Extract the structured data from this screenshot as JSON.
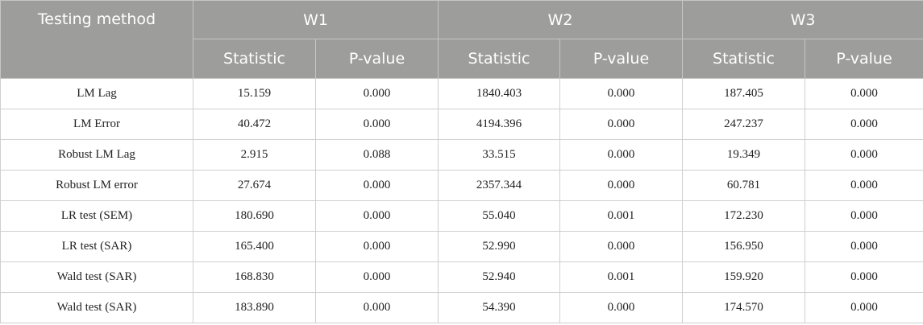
{
  "header": {
    "corner": "Testing method",
    "groups": [
      "W1",
      "W2",
      "W3"
    ],
    "sub": [
      "Statistic",
      "P-value"
    ]
  },
  "rows": [
    {
      "method": "LM Lag",
      "values": [
        "15.159",
        "0.000",
        "1840.403",
        "0.000",
        "187.405",
        "0.000"
      ]
    },
    {
      "method": "LM Error",
      "values": [
        "40.472",
        "0.000",
        "4194.396",
        "0.000",
        "247.237",
        "0.000"
      ]
    },
    {
      "method": "Robust LM Lag",
      "values": [
        "2.915",
        "0.088",
        "33.515",
        "0.000",
        "19.349",
        "0.000"
      ]
    },
    {
      "method": "Robust LM error",
      "values": [
        "27.674",
        "0.000",
        "2357.344",
        "0.000",
        "60.781",
        "0.000"
      ]
    },
    {
      "method": "LR test (SEM)",
      "values": [
        "180.690",
        "0.000",
        "55.040",
        "0.001",
        "172.230",
        "0.000"
      ]
    },
    {
      "method": "LR test (SAR)",
      "values": [
        "165.400",
        "0.000",
        "52.990",
        "0.000",
        "156.950",
        "0.000"
      ]
    },
    {
      "method": "Wald test (SAR)",
      "values": [
        "168.830",
        "0.000",
        "52.940",
        "0.001",
        "159.920",
        "0.000"
      ]
    },
    {
      "method": "Wald test (SAR)",
      "values": [
        "183.890",
        "0.000",
        "54.390",
        "0.000",
        "174.570",
        "0.000"
      ]
    }
  ]
}
